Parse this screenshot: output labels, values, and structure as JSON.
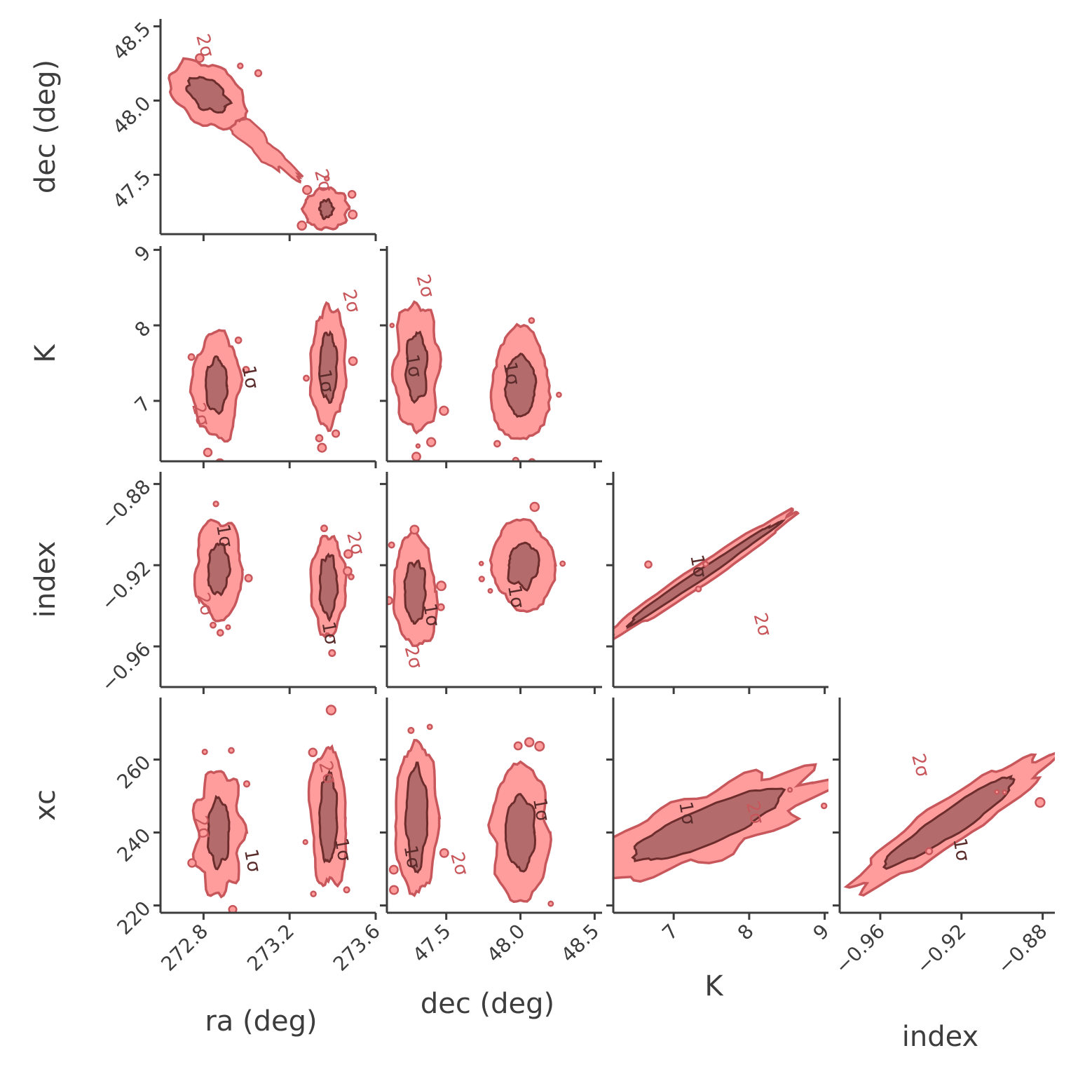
{
  "colors": {
    "fill_2sigma": "#ff9d9d",
    "fill_1sigma": "#b36b6b",
    "edge_2sigma": "#c8575c",
    "edge_1sigma": "#6e2d2d",
    "label_2sigma": "#c8575c",
    "label_1sigma": "#5a2b2b",
    "axis": "#3d3d3d"
  },
  "chart_data": {
    "type": "corner",
    "contour_levels": [
      "1σ",
      "2σ"
    ],
    "parameters": [
      {
        "name": "ra",
        "label": "ra (deg)",
        "range": [
          272.6,
          273.6
        ],
        "ticks": [
          "272.8",
          "273.2",
          "273.6"
        ]
      },
      {
        "name": "dec",
        "label": "dec (deg)",
        "range": [
          47.1,
          48.55
        ],
        "ticks": [
          "47.5",
          "48.0",
          "48.5"
        ]
      },
      {
        "name": "K",
        "label": "K",
        "range": [
          6.2,
          9.05
        ],
        "ticks": [
          "7",
          "8",
          "9"
        ]
      },
      {
        "name": "index",
        "label": "index",
        "range": [
          -0.98,
          -0.874
        ],
        "ticks": [
          "−0.96",
          "−0.92",
          "−0.88"
        ]
      },
      {
        "name": "xc",
        "label": "xc",
        "range": [
          218,
          277
        ],
        "ticks": [
          "220",
          "240",
          "260"
        ]
      }
    ],
    "panels": [
      {
        "id": "p-ra-dec",
        "x": "ra",
        "y": "dec",
        "modes": [
          {
            "cx": 272.82,
            "cy": 48.04,
            "sx": 0.03,
            "sy": 0.07,
            "rot": -35,
            "s2x": 0.09,
            "s2y": 0.12
          },
          {
            "cx": 273.37,
            "cy": 47.27,
            "sx": 0.03,
            "sy": 0.06,
            "rot": 0,
            "s2x": 0.1,
            "s2y": 0.14
          }
        ],
        "bridge": [
          [
            272.95,
            47.85
          ],
          [
            273.18,
            47.55
          ]
        ],
        "sigma_labels": [
          {
            "text": "2σ",
            "x": 272.78,
            "y": 48.36
          },
          {
            "text": "2σ",
            "x": 273.33,
            "y": 47.45
          }
        ]
      },
      {
        "id": "p-ra-K",
        "x": "ra",
        "y": "K",
        "modes": [
          {
            "cx": 272.86,
            "cy": 7.2,
            "sx": 0.05,
            "sy": 0.35,
            "rot": 0,
            "s2x": 0.11,
            "s2y": 0.7
          },
          {
            "cx": 273.38,
            "cy": 7.45,
            "sx": 0.04,
            "sy": 0.45,
            "rot": 0,
            "s2x": 0.08,
            "s2y": 0.8
          }
        ],
        "sigma_labels": [
          {
            "text": "1σ",
            "x": 272.99,
            "y": 7.3
          },
          {
            "text": "2σ",
            "x": 272.76,
            "y": 6.8
          },
          {
            "text": "1σ",
            "x": 273.34,
            "y": 7.25
          },
          {
            "text": "2σ",
            "x": 273.46,
            "y": 8.3
          }
        ]
      },
      {
        "id": "p-dec-K",
        "x": "dec",
        "y": "K",
        "modes": [
          {
            "cx": 47.3,
            "cy": 7.45,
            "sx": 0.07,
            "sy": 0.45,
            "rot": 0,
            "s2x": 0.15,
            "s2y": 0.85
          },
          {
            "cx": 48.0,
            "cy": 7.2,
            "sx": 0.1,
            "sy": 0.4,
            "rot": 0,
            "s2x": 0.2,
            "s2y": 0.72
          }
        ],
        "sigma_labels": [
          {
            "text": "2σ",
            "x": 47.32,
            "y": 8.5
          },
          {
            "text": "1σ",
            "x": 47.24,
            "y": 7.45
          },
          {
            "text": "1σ",
            "x": 47.9,
            "y": 7.35
          }
        ]
      },
      {
        "id": "p-ra-index",
        "x": "ra",
        "y": "index",
        "modes": [
          {
            "cx": 272.87,
            "cy": -0.922,
            "sx": 0.05,
            "sy": 0.012,
            "rot": 0,
            "s2x": 0.11,
            "s2y": 0.024
          },
          {
            "cx": 273.38,
            "cy": -0.93,
            "sx": 0.04,
            "sy": 0.015,
            "rot": 0,
            "s2x": 0.08,
            "s2y": 0.024
          }
        ],
        "sigma_labels": [
          {
            "text": "1σ",
            "x": 272.87,
            "y": -0.906
          },
          {
            "text": "2σ",
            "x": 272.78,
            "y": -0.94
          },
          {
            "text": "1σ",
            "x": 273.36,
            "y": -0.954
          },
          {
            "text": "2σ",
            "x": 273.48,
            "y": -0.91
          }
        ]
      },
      {
        "id": "p-dec-index",
        "x": "dec",
        "y": "index",
        "modes": [
          {
            "cx": 47.29,
            "cy": -0.933,
            "sx": 0.07,
            "sy": 0.015,
            "rot": 0,
            "s2x": 0.15,
            "s2y": 0.026
          },
          {
            "cx": 48.02,
            "cy": -0.92,
            "sx": 0.1,
            "sy": 0.011,
            "rot": 0,
            "s2x": 0.21,
            "s2y": 0.022
          }
        ],
        "sigma_labels": [
          {
            "text": "1σ",
            "x": 47.36,
            "y": -0.945
          },
          {
            "text": "2σ",
            "x": 47.24,
            "y": -0.966
          },
          {
            "text": "1σ",
            "x": 47.93,
            "y": -0.936
          }
        ]
      },
      {
        "id": "p-K-index",
        "x": "K",
        "y": "index",
        "modes": [
          {
            "cx": 7.35,
            "cy": -0.925,
            "sx": 0.55,
            "sy": 0.003,
            "rot": 34,
            "s2x": 0.95,
            "s2y": 0.006
          }
        ],
        "sigma_labels": [
          {
            "text": "1σ",
            "x": 7.25,
            "y": -0.921
          },
          {
            "text": "2σ",
            "x": 8.1,
            "y": -0.95
          }
        ]
      },
      {
        "id": "p-ra-xc",
        "x": "ra",
        "y": "xc",
        "modes": [
          {
            "cx": 272.87,
            "cy": 240,
            "sx": 0.05,
            "sy": 9,
            "rot": 0,
            "s2x": 0.11,
            "s2y": 17
          },
          {
            "cx": 273.38,
            "cy": 244,
            "sx": 0.04,
            "sy": 12,
            "rot": 0,
            "s2x": 0.08,
            "s2y": 20
          }
        ],
        "sigma_labels": [
          {
            "text": "2σ",
            "x": 272.77,
            "y": 241
          },
          {
            "text": "1σ",
            "x": 273.0,
            "y": 232
          },
          {
            "text": "2σ",
            "x": 273.35,
            "y": 256
          },
          {
            "text": "1σ",
            "x": 273.42,
            "y": 235
          }
        ]
      },
      {
        "id": "p-dec-xc",
        "x": "dec",
        "y": "xc",
        "modes": [
          {
            "cx": 47.3,
            "cy": 244,
            "sx": 0.07,
            "sy": 14,
            "rot": 0,
            "s2x": 0.14,
            "s2y": 21
          },
          {
            "cx": 48.0,
            "cy": 240,
            "sx": 0.1,
            "sy": 10,
            "rot": 0,
            "s2x": 0.2,
            "s2y": 18
          }
        ],
        "sigma_labels": [
          {
            "text": "1σ",
            "x": 47.23,
            "y": 233
          },
          {
            "text": "2σ",
            "x": 47.55,
            "y": 231
          },
          {
            "text": "1σ",
            "x": 48.1,
            "y": 246
          }
        ]
      },
      {
        "id": "p-K-xc",
        "x": "K",
        "y": "xc",
        "modes": [
          {
            "cx": 7.45,
            "cy": 242,
            "sx": 0.7,
            "sy": 6,
            "rot": 22,
            "s2x": 0.95,
            "s2y": 9
          }
        ],
        "sigma_labels": [
          {
            "text": "1σ",
            "x": 7.1,
            "y": 245
          },
          {
            "text": "2σ",
            "x": 8.0,
            "y": 245
          }
        ]
      },
      {
        "id": "p-index-xc",
        "x": "index",
        "y": "xc",
        "modes": [
          {
            "cx": -0.925,
            "cy": 243,
            "sx": 0.015,
            "sy": 4,
            "rot": 34,
            "s2x": 0.025,
            "s2y": 7
          }
        ],
        "sigma_labels": [
          {
            "text": "2σ",
            "x": -0.943,
            "y": 258
          },
          {
            "text": "1σ",
            "x": -0.923,
            "y": 235
          }
        ]
      }
    ]
  }
}
